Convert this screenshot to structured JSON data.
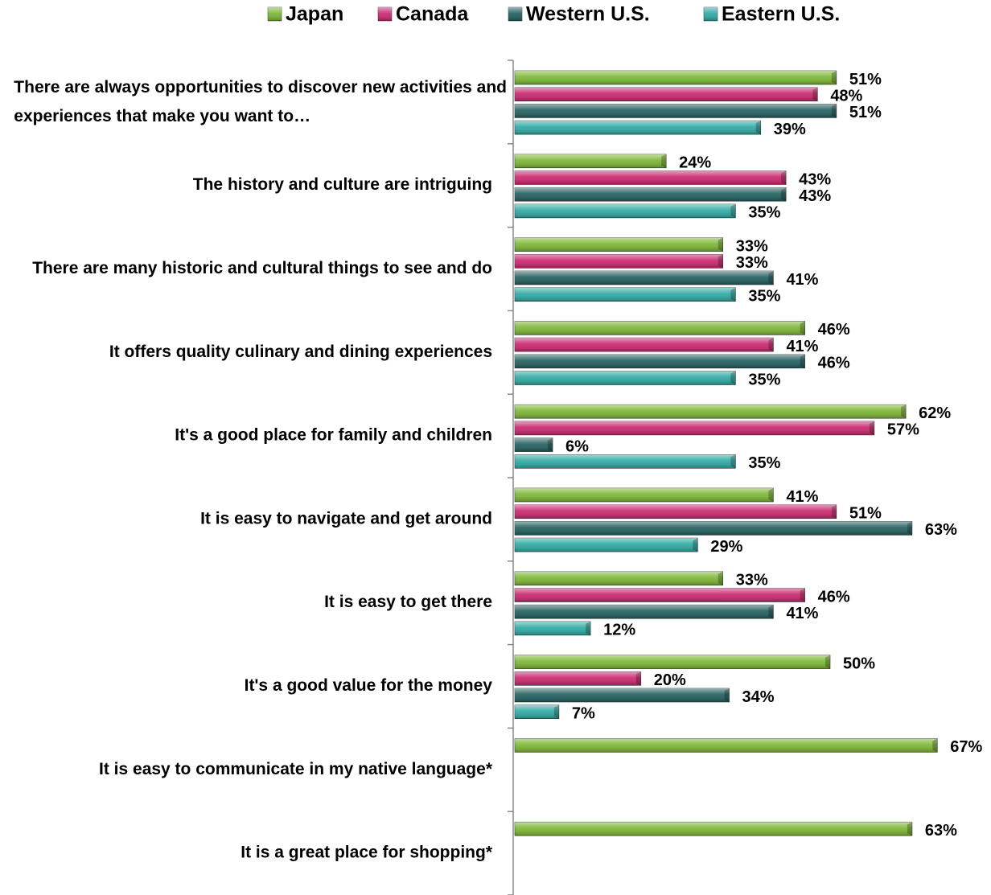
{
  "chart_data": {
    "type": "bar",
    "orientation": "horizontal",
    "categories": [
      "There are always opportunities to discover new activities and experiences that make you want to…",
      "The history and culture are intriguing",
      "There are many historic and cultural things to see and do",
      "It offers quality culinary and dining experiences",
      "It's a good place for family and children",
      "It is easy to navigate and get around",
      "It is easy to get there",
      "It's a good value for the money",
      "It is easy to communicate in my native language*",
      "It is a great place for shopping*"
    ],
    "series": [
      {
        "name": "Japan",
        "color": "#7ab530",
        "values": [
          51,
          24,
          33,
          46,
          62,
          41,
          33,
          50,
          67,
          63
        ],
        "value_labels": [
          "51%",
          "24%",
          "33%",
          "46%",
          "62%",
          "41%",
          "33%",
          "50%",
          "67%",
          "63%"
        ]
      },
      {
        "name": "Canada",
        "color": "#c9236c",
        "values": [
          48,
          43,
          33,
          41,
          57,
          51,
          46,
          20,
          null,
          null
        ],
        "value_labels": [
          "48%",
          "43%",
          "33%",
          "41%",
          "57%",
          "51%",
          "46%",
          "20%",
          null,
          null
        ]
      },
      {
        "name": "Western U.S.",
        "color": "#1e5c5c",
        "values": [
          51,
          43,
          41,
          46,
          6,
          63,
          41,
          34,
          null,
          null
        ],
        "value_labels": [
          "51%",
          "43%",
          "41%",
          "46%",
          "6%",
          "63%",
          "41%",
          "34%",
          null,
          null
        ]
      },
      {
        "name": "Eastern U.S.",
        "color": "#2aa8a2",
        "values": [
          39,
          35,
          35,
          35,
          35,
          29,
          12,
          7,
          null,
          null
        ],
        "value_labels": [
          "39%",
          "35%",
          "35%",
          "35%",
          "35%",
          "29%",
          "12%",
          "7%",
          null,
          null
        ]
      }
    ],
    "xlim": [
      0,
      75
    ],
    "legend": "top"
  }
}
